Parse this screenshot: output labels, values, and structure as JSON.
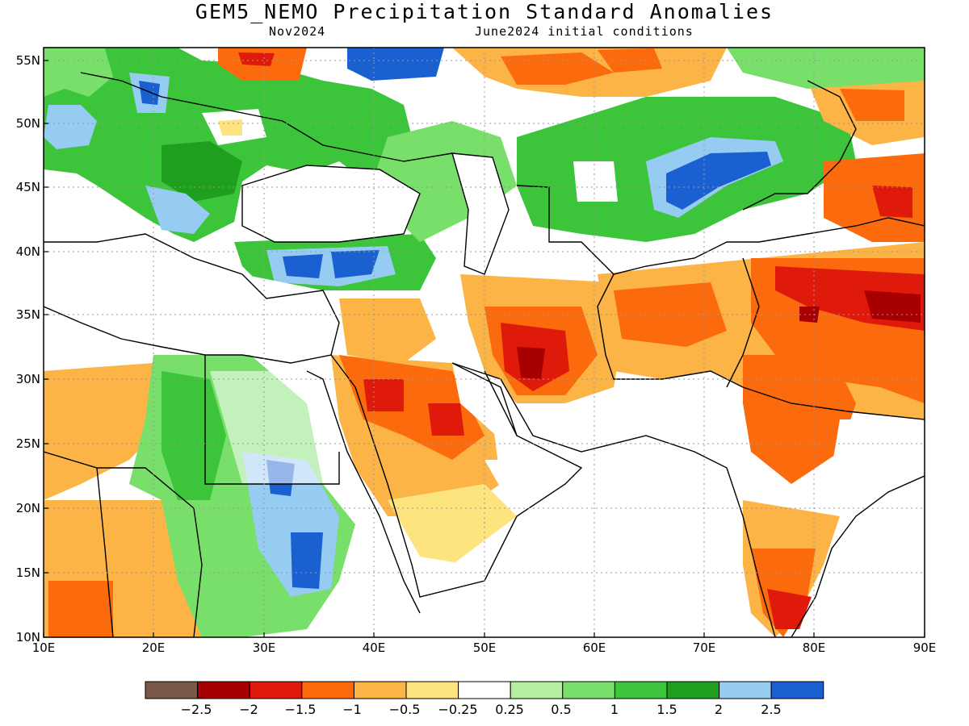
{
  "title": "GEM5_NEMO Precipitation Standard Anomalies",
  "valid_month": "Nov2024",
  "init_label": "June2024 initial conditions",
  "lat_ticks": [
    "10N",
    "15N",
    "20N",
    "25N",
    "30N",
    "35N",
    "40N",
    "45N",
    "50N",
    "55N"
  ],
  "lon_ticks": [
    "10E",
    "20E",
    "30E",
    "40E",
    "50E",
    "60E",
    "70E",
    "80E",
    "90E"
  ],
  "colorbar": {
    "labels": [
      "−2.5",
      "−2",
      "−1.5",
      "−1",
      "−0.5",
      "−0.25",
      "0.25",
      "0.5",
      "1",
      "1.5",
      "2",
      "2.5"
    ],
    "colors": [
      "#7a5848",
      "#a80000",
      "#e01a0a",
      "#fb6a0d",
      "#fbb445",
      "#fde47e",
      "#ffffff",
      "#b4f0a0",
      "#78e06a",
      "#3cc43a",
      "#1ea01e",
      "#96cbf2",
      "#1a60d0"
    ]
  }
}
